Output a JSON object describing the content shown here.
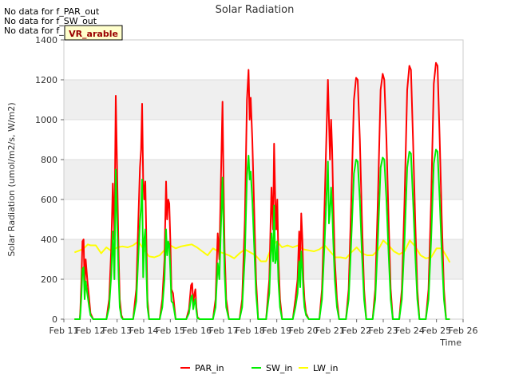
{
  "no_data_messages": [
    "No data for f_PAR_out",
    "No data for f_SW_out",
    "No data for f_LW_out"
  ],
  "site_badge": "VR_arable",
  "colors": {
    "PAR_in": "#ff0000",
    "SW_in": "#00ee00",
    "LW_in": "#ffff00",
    "band": "#efefef",
    "badge_bg": "#ffffcc",
    "badge_text": "#990000"
  },
  "chart_data": {
    "type": "line",
    "title": "Solar Radiation",
    "xlabel": "Time",
    "ylabel": "Solar Radiation (umol/m2/s, W/m2)",
    "xlim": [
      11,
      26
    ],
    "ylim": [
      0,
      1400
    ],
    "x_ticks": [
      11,
      12,
      13,
      14,
      15,
      16,
      17,
      18,
      19,
      20,
      21,
      22,
      23,
      24,
      25,
      26
    ],
    "x_tick_labels": [
      "Feb 11",
      "Feb 12",
      "Feb 13",
      "Feb 14",
      "Feb 15",
      "Feb 16",
      "Feb 17",
      "Feb 18",
      "Feb 19",
      "Feb 20",
      "Feb 21",
      "Feb 22",
      "Feb 23",
      "Feb 24",
      "Feb 25",
      "Feb 26"
    ],
    "y_ticks": [
      0,
      200,
      400,
      600,
      800,
      1000,
      1200,
      1400
    ],
    "y_tick_labels": [
      "0",
      "200",
      "400",
      "600",
      "800",
      "1000",
      "1200",
      "1400"
    ],
    "grid": true,
    "legend_position": "bottom-center",
    "series": [
      {
        "name": "PAR_in",
        "x": [
          11.4,
          11.6,
          11.62,
          11.66,
          11.7,
          11.74,
          11.78,
          11.82,
          11.88,
          11.95,
          12.0,
          12.1,
          12.6,
          12.7,
          12.78,
          12.84,
          12.9,
          12.95,
          12.98,
          13.02,
          13.06,
          13.1,
          13.16,
          13.22,
          13.3,
          13.6,
          13.72,
          13.8,
          13.86,
          13.9,
          13.94,
          13.98,
          14.02,
          14.06,
          14.1,
          14.14,
          14.2,
          14.3,
          14.6,
          14.7,
          14.78,
          14.84,
          14.88,
          14.92,
          14.96,
          15.0,
          15.04,
          15.1,
          15.2,
          15.6,
          15.7,
          15.78,
          15.82,
          15.86,
          15.9,
          15.94,
          15.98,
          16.02,
          16.1,
          16.6,
          16.7,
          16.78,
          16.84,
          16.9,
          16.96,
          17.0,
          17.04,
          17.1,
          17.2,
          17.6,
          17.7,
          17.8,
          17.88,
          17.94,
          17.98,
          18.02,
          18.08,
          18.14,
          18.22,
          18.3,
          18.6,
          18.72,
          18.8,
          18.86,
          18.9,
          18.94,
          18.98,
          19.02,
          19.06,
          19.12,
          19.2,
          19.6,
          19.7,
          19.78,
          19.84,
          19.88,
          19.92,
          19.96,
          20.0,
          20.04,
          20.1,
          20.2,
          20.6,
          20.7,
          20.8,
          20.86,
          20.92,
          20.96,
          21.0,
          21.04,
          21.08,
          21.12,
          21.18,
          21.26,
          21.34,
          21.6,
          21.7,
          21.8,
          21.9,
          21.98,
          22.04,
          22.12,
          22.2,
          22.28,
          22.36,
          22.6,
          22.7,
          22.8,
          22.9,
          22.98,
          23.04,
          23.12,
          23.2,
          23.28,
          23.36,
          23.6,
          23.7,
          23.8,
          23.9,
          23.98,
          24.04,
          24.12,
          24.2,
          24.28,
          24.36,
          24.6,
          24.7,
          24.8,
          24.9,
          24.98,
          25.04,
          25.12,
          25.2,
          25.28,
          25.36,
          25.5
        ],
        "values": [
          0,
          0,
          50,
          200,
          390,
          400,
          150,
          300,
          200,
          100,
          30,
          0,
          0,
          100,
          350,
          680,
          400,
          1120,
          900,
          600,
          300,
          100,
          20,
          0,
          0,
          0,
          150,
          500,
          760,
          850,
          1080,
          700,
          600,
          690,
          400,
          100,
          0,
          0,
          0,
          100,
          300,
          690,
          500,
          600,
          580,
          400,
          150,
          130,
          0,
          0,
          50,
          170,
          180,
          80,
          120,
          150,
          60,
          10,
          0,
          0,
          100,
          430,
          300,
          700,
          1090,
          680,
          350,
          100,
          0,
          0,
          100,
          500,
          1100,
          1250,
          1000,
          1110,
          900,
          600,
          200,
          0,
          0,
          200,
          660,
          450,
          880,
          600,
          450,
          600,
          300,
          100,
          0,
          0,
          100,
          200,
          440,
          250,
          530,
          400,
          200,
          100,
          30,
          0,
          0,
          150,
          600,
          900,
          1200,
          1000,
          800,
          1000,
          850,
          600,
          300,
          100,
          0,
          0,
          150,
          600,
          1100,
          1210,
          1200,
          900,
          500,
          150,
          0,
          0,
          150,
          600,
          1150,
          1230,
          1200,
          900,
          500,
          150,
          0,
          0,
          150,
          600,
          1150,
          1270,
          1250,
          900,
          500,
          150,
          0,
          0,
          150,
          600,
          1180,
          1285,
          1270,
          900,
          500,
          150,
          0,
          0
        ]
      },
      {
        "name": "SW_in",
        "x": [
          11.4,
          11.6,
          11.62,
          11.66,
          11.7,
          11.74,
          11.78,
          11.82,
          11.88,
          11.95,
          12.0,
          12.1,
          12.6,
          12.7,
          12.78,
          12.84,
          12.9,
          12.95,
          12.98,
          13.02,
          13.06,
          13.1,
          13.16,
          13.22,
          13.3,
          13.6,
          13.72,
          13.8,
          13.86,
          13.9,
          13.94,
          13.98,
          14.02,
          14.06,
          14.1,
          14.14,
          14.2,
          14.3,
          14.6,
          14.7,
          14.78,
          14.84,
          14.88,
          14.92,
          14.96,
          15.0,
          15.04,
          15.1,
          15.2,
          15.6,
          15.7,
          15.78,
          15.82,
          15.86,
          15.9,
          15.94,
          15.98,
          16.02,
          16.1,
          16.6,
          16.7,
          16.78,
          16.84,
          16.9,
          16.96,
          17.0,
          17.04,
          17.1,
          17.2,
          17.6,
          17.7,
          17.8,
          17.88,
          17.94,
          17.98,
          18.02,
          18.08,
          18.14,
          18.22,
          18.3,
          18.6,
          18.72,
          18.8,
          18.86,
          18.9,
          18.94,
          18.98,
          19.02,
          19.06,
          19.12,
          19.2,
          19.6,
          19.7,
          19.78,
          19.84,
          19.88,
          19.92,
          19.96,
          20.0,
          20.04,
          20.1,
          20.2,
          20.6,
          20.7,
          20.8,
          20.86,
          20.92,
          20.96,
          21.0,
          21.04,
          21.08,
          21.12,
          21.18,
          21.26,
          21.34,
          21.6,
          21.7,
          21.8,
          21.9,
          21.98,
          22.04,
          22.12,
          22.2,
          22.28,
          22.36,
          22.6,
          22.7,
          22.8,
          22.9,
          22.98,
          23.04,
          23.12,
          23.2,
          23.28,
          23.36,
          23.6,
          23.7,
          23.8,
          23.9,
          23.98,
          24.04,
          24.12,
          24.2,
          24.28,
          24.36,
          24.6,
          24.7,
          24.8,
          24.9,
          24.98,
          25.04,
          25.12,
          25.2,
          25.28,
          25.36,
          25.5
        ],
        "values": [
          0,
          0,
          30,
          120,
          250,
          260,
          100,
          190,
          130,
          60,
          20,
          0,
          0,
          60,
          220,
          440,
          200,
          750,
          600,
          400,
          200,
          60,
          10,
          0,
          0,
          0,
          90,
          320,
          490,
          560,
          700,
          210,
          400,
          450,
          250,
          60,
          0,
          0,
          0,
          60,
          200,
          450,
          320,
          390,
          370,
          250,
          90,
          80,
          0,
          0,
          30,
          110,
          120,
          50,
          80,
          100,
          40,
          5,
          0,
          0,
          60,
          280,
          200,
          460,
          710,
          450,
          230,
          60,
          0,
          0,
          60,
          320,
          720,
          820,
          700,
          740,
          600,
          400,
          130,
          0,
          0,
          130,
          430,
          290,
          570,
          280,
          300,
          390,
          190,
          60,
          0,
          0,
          60,
          130,
          290,
          160,
          340,
          260,
          130,
          60,
          20,
          0,
          0,
          100,
          400,
          600,
          790,
          480,
          540,
          660,
          560,
          400,
          200,
          60,
          0,
          0,
          100,
          400,
          730,
          800,
          790,
          600,
          330,
          100,
          0,
          0,
          100,
          400,
          760,
          810,
          800,
          600,
          330,
          100,
          0,
          0,
          100,
          400,
          760,
          840,
          830,
          600,
          330,
          100,
          0,
          0,
          100,
          400,
          780,
          850,
          840,
          600,
          330,
          100,
          0,
          0
        ]
      },
      {
        "name": "LW_in",
        "x": [
          11.4,
          11.6,
          11.75,
          11.9,
          12.0,
          12.2,
          12.4,
          12.6,
          12.8,
          13.0,
          13.2,
          13.4,
          13.6,
          13.8,
          14.0,
          14.2,
          14.4,
          14.6,
          14.8,
          15.0,
          15.2,
          15.4,
          15.6,
          15.8,
          16.0,
          16.2,
          16.4,
          16.6,
          16.8,
          17.0,
          17.2,
          17.4,
          17.6,
          17.8,
          18.0,
          18.2,
          18.4,
          18.6,
          18.8,
          19.0,
          19.2,
          19.4,
          19.6,
          19.8,
          20.0,
          20.2,
          20.4,
          20.6,
          20.8,
          21.0,
          21.2,
          21.4,
          21.6,
          21.8,
          22.0,
          22.2,
          22.4,
          22.6,
          22.8,
          23.0,
          23.2,
          23.4,
          23.6,
          23.8,
          24.0,
          24.2,
          24.4,
          24.6,
          24.8,
          25.0,
          25.2,
          25.4,
          25.5
        ],
        "values": [
          335,
          345,
          355,
          375,
          370,
          370,
          330,
          360,
          340,
          360,
          365,
          360,
          370,
          390,
          350,
          315,
          310,
          320,
          350,
          370,
          355,
          365,
          370,
          375,
          360,
          340,
          320,
          355,
          340,
          330,
          320,
          305,
          330,
          350,
          335,
          320,
          290,
          290,
          360,
          390,
          360,
          370,
          360,
          370,
          350,
          345,
          340,
          350,
          370,
          340,
          310,
          310,
          305,
          335,
          360,
          330,
          320,
          320,
          345,
          395,
          370,
          340,
          325,
          340,
          395,
          365,
          320,
          305,
          310,
          355,
          355,
          310,
          285
        ]
      }
    ]
  }
}
